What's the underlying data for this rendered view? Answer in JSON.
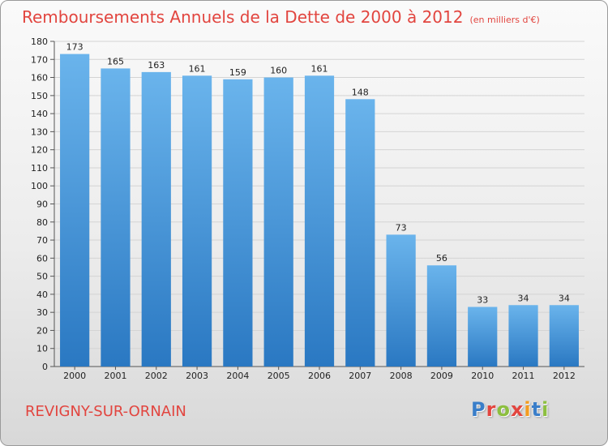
{
  "header": {
    "title": "Remboursements Annuels de la Dette de 2000 à 2012",
    "unit": "(en milliers d'€)"
  },
  "footer": {
    "city": "REVIGNY-SUR-ORNAIN",
    "logo": {
      "text": "Proxiti",
      "letter_colors": [
        "#3a7ec9",
        "#e2453f",
        "#8cbf3f",
        "#e2453f",
        "#f39c1f",
        "#3a7ec9",
        "#8cbf3f"
      ]
    }
  },
  "colors": {
    "bar_top": "#6ab4ec",
    "bar_bottom": "#2a78c2",
    "title": "#e2453f",
    "grid": "#d4d4d4"
  },
  "chart_data": {
    "type": "bar",
    "title": "Remboursements Annuels de la Dette de 2000 à 2012",
    "subtitle": "(en milliers d'€)",
    "xlabel": "",
    "ylabel": "",
    "categories": [
      "2000",
      "2001",
      "2002",
      "2003",
      "2004",
      "2005",
      "2006",
      "2007",
      "2008",
      "2009",
      "2010",
      "2011",
      "2012"
    ],
    "values": [
      173,
      165,
      163,
      161,
      159,
      160,
      161,
      148,
      73,
      56,
      33,
      34,
      34
    ],
    "ylim": [
      0,
      180
    ],
    "yticks": [
      0,
      10,
      20,
      30,
      40,
      50,
      60,
      70,
      80,
      90,
      100,
      110,
      120,
      130,
      140,
      150,
      160,
      170,
      180
    ],
    "grid": true,
    "legend": "none"
  }
}
